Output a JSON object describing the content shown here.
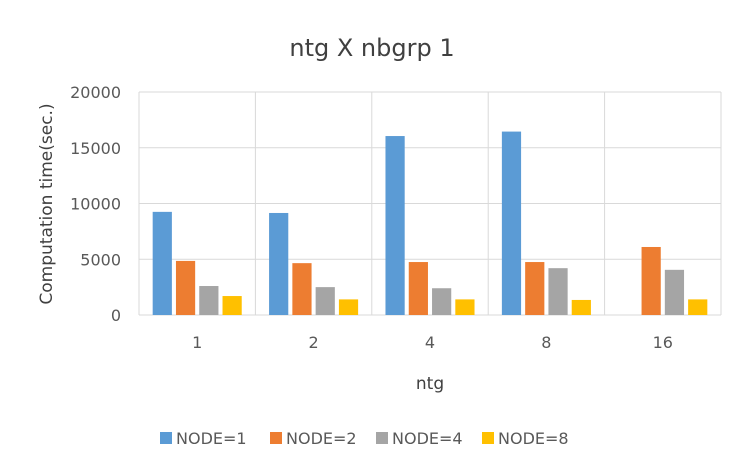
{
  "chart_data": {
    "type": "bar",
    "title": "ntg X nbgrp 1",
    "xlabel": "ntg",
    "ylabel": "Computation time(sec.)",
    "categories": [
      "1",
      "2",
      "4",
      "8",
      "16"
    ],
    "ylim": [
      0,
      20000
    ],
    "yticks": [
      0,
      5000,
      10000,
      15000,
      20000
    ],
    "grid": true,
    "legend_position": "bottom",
    "series": [
      {
        "name": "NODE=1",
        "color": "#5B9BD5",
        "values": [
          9250,
          9150,
          16050,
          16450,
          null
        ]
      },
      {
        "name": "NODE=2",
        "color": "#ED7D31",
        "values": [
          4850,
          4650,
          4750,
          4750,
          6100
        ]
      },
      {
        "name": "NODE=4",
        "color": "#A5A5A5",
        "values": [
          2600,
          2500,
          2400,
          4200,
          4050
        ]
      },
      {
        "name": "NODE=8",
        "color": "#FFC000",
        "values": [
          1700,
          1400,
          1400,
          1350,
          1400
        ]
      }
    ]
  }
}
